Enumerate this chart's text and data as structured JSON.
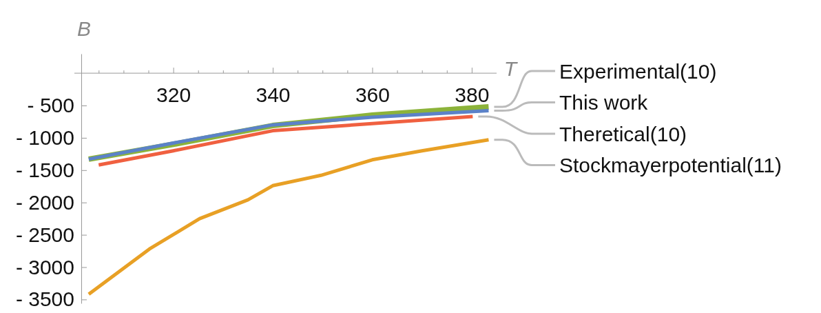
{
  "chart_data": {
    "type": "line",
    "xlabel": "T",
    "ylabel": "B",
    "xlim": [
      301.5,
      385
    ],
    "ylim": [
      -3560,
      300
    ],
    "xticks": [
      {
        "value": 305,
        "label": null
      },
      {
        "value": 310,
        "label": null
      },
      {
        "value": 315,
        "label": null
      },
      320,
      {
        "value": 325,
        "label": null
      },
      {
        "value": 330,
        "label": null
      },
      {
        "value": 335,
        "label": null
      },
      340,
      {
        "value": 345,
        "label": null
      },
      {
        "value": 350,
        "label": null
      },
      {
        "value": 355,
        "label": null
      },
      360,
      {
        "value": 365,
        "label": null
      },
      {
        "value": 370,
        "label": null
      },
      {
        "value": 375,
        "label": null
      },
      380
    ],
    "yticks": [
      {
        "value": -500,
        "label": "- 500"
      },
      {
        "value": -1000,
        "label": "- 1000"
      },
      {
        "value": -1500,
        "label": "- 1500"
      },
      {
        "value": -2000,
        "label": "- 2000"
      },
      {
        "value": -2500,
        "label": "- 2500"
      },
      {
        "value": -3000,
        "label": "- 3000"
      },
      {
        "value": -3500,
        "label": "- 3500"
      }
    ],
    "grid": false,
    "legend": "right",
    "marker": "none",
    "line_style": "solid",
    "series": [
      {
        "name": "Experimental(10)",
        "color": "#8cb33a",
        "x": [
          303,
          320,
          340,
          360,
          383.4
        ],
        "values": [
          -1330,
          -1100,
          -810,
          -650,
          -520
        ]
      },
      {
        "name": "This work",
        "color": "#5b82c8",
        "x": [
          303,
          320,
          340,
          360,
          383.4
        ],
        "values": [
          -1330,
          -1080,
          -800,
          -680,
          -580
        ]
      },
      {
        "name": "Theretical(10)",
        "color": "#f06040",
        "x": [
          305,
          320,
          340,
          360,
          380.2
        ],
        "values": [
          -1420,
          -1200,
          -890,
          -780,
          -670
        ]
      },
      {
        "name": "Stockmayerpotential(11)",
        "color": "#e8a025",
        "x": [
          303,
          315.2,
          325.3,
          335,
          340,
          349.7,
          360,
          370,
          383.4
        ],
        "values": [
          -3420,
          -2720,
          -2250,
          -1960,
          -1740,
          -1580,
          -1340,
          -1200,
          -1030
        ]
      }
    ]
  }
}
